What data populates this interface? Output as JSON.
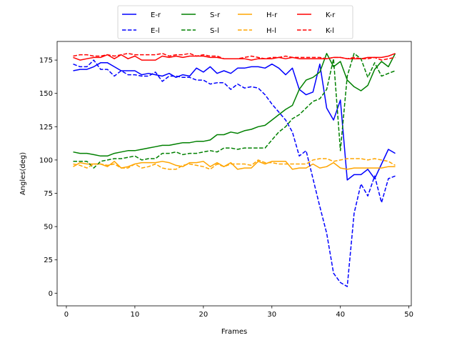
{
  "chart_data": {
    "type": "line",
    "title": "",
    "xlabel": "Frames",
    "ylabel": "Angles(deg)",
    "xlim": [
      -1.35,
      50.35
    ],
    "ylim": [
      -9.5,
      189
    ],
    "xticks": [
      0,
      10,
      20,
      30,
      40,
      50
    ],
    "yticks": [
      0,
      25,
      50,
      75,
      100,
      125,
      150,
      175
    ],
    "grid": false,
    "legend_position": "top-center",
    "x": [
      1,
      2,
      3,
      4,
      5,
      6,
      7,
      8,
      9,
      10,
      11,
      12,
      13,
      14,
      15,
      16,
      17,
      18,
      19,
      20,
      21,
      22,
      23,
      24,
      25,
      26,
      27,
      28,
      29,
      30,
      31,
      32,
      33,
      34,
      35,
      36,
      37,
      38,
      39,
      40,
      41,
      42,
      43,
      44,
      45,
      46,
      47,
      48
    ],
    "series": [
      {
        "name": "E-r",
        "color": "#0000ff",
        "dash": "solid",
        "values": [
          167,
          168,
          168,
          170,
          173,
          173,
          170,
          167,
          167,
          167,
          164,
          165,
          164,
          163,
          165,
          162,
          164,
          163,
          169,
          166,
          170,
          165,
          167,
          165,
          169,
          169,
          170,
          170,
          169,
          172,
          169,
          164,
          169,
          153,
          149,
          151,
          172,
          139,
          130,
          145,
          85,
          89,
          89,
          93,
          86,
          97,
          108,
          105
        ]
      },
      {
        "name": "S-r",
        "color": "#008000",
        "dash": "solid",
        "values": [
          106,
          105,
          105,
          104,
          103,
          103,
          105,
          106,
          107,
          107,
          108,
          109,
          110,
          111,
          111,
          112,
          113,
          113,
          114,
          114,
          115,
          119,
          119,
          121,
          120,
          122,
          123,
          125,
          126,
          130,
          134,
          138,
          141,
          153,
          160,
          162,
          166,
          180,
          170,
          174,
          160,
          155,
          152,
          156,
          168,
          174,
          170,
          180
        ]
      },
      {
        "name": "H-r",
        "color": "#ffa500",
        "dash": "solid",
        "values": [
          95,
          98,
          97,
          97,
          97,
          95,
          99,
          94,
          95,
          97,
          98,
          98,
          98,
          99,
          98,
          96,
          95,
          98,
          98,
          99,
          95,
          98,
          95,
          98,
          93,
          94,
          94,
          99,
          97,
          99,
          99,
          99,
          93,
          94,
          94,
          97,
          94,
          95,
          98,
          94,
          93,
          94,
          94,
          94,
          94,
          94,
          95,
          95
        ]
      },
      {
        "name": "K-r",
        "color": "#ff0000",
        "dash": "solid",
        "values": [
          177,
          175,
          176,
          177,
          177,
          179,
          176,
          179,
          176,
          178,
          175,
          175,
          175,
          178,
          177,
          178,
          177,
          178,
          178,
          178,
          177,
          177,
          176,
          176,
          176,
          176,
          175,
          176,
          176,
          176,
          177,
          176,
          177,
          176,
          176,
          176,
          176,
          176,
          177,
          177,
          176,
          176,
          176,
          177,
          177,
          177,
          178,
          180
        ]
      },
      {
        "name": "E-l",
        "color": "#0000ff",
        "dash": "dashed",
        "values": [
          172,
          170,
          170,
          175,
          168,
          168,
          163,
          167,
          164,
          164,
          163,
          163,
          166,
          159,
          163,
          163,
          162,
          162,
          160,
          160,
          157,
          158,
          158,
          153,
          157,
          154,
          155,
          154,
          149,
          142,
          136,
          130,
          121,
          103,
          107,
          86,
          65,
          45,
          15,
          8,
          5,
          60,
          82,
          73,
          88,
          68,
          86,
          88
        ]
      },
      {
        "name": "S-l",
        "color": "#008000",
        "dash": "dashed",
        "values": [
          99,
          99,
          99,
          94,
          99,
          100,
          101,
          101,
          102,
          103,
          100,
          101,
          101,
          105,
          105,
          106,
          104,
          105,
          105,
          106,
          107,
          106,
          109,
          109,
          108,
          109,
          109,
          109,
          109,
          115,
          121,
          125,
          131,
          134,
          139,
          144,
          146,
          153,
          176,
          107,
          163,
          180,
          176,
          162,
          173,
          163,
          165,
          167
        ]
      },
      {
        "name": "H-l",
        "color": "#ffa500",
        "dash": "dashed",
        "values": [
          97,
          96,
          94,
          97,
          97,
          96,
          97,
          94,
          94,
          97,
          94,
          95,
          97,
          94,
          93,
          93,
          96,
          97,
          96,
          95,
          93,
          97,
          95,
          97,
          97,
          97,
          96,
          100,
          98,
          98,
          97,
          97,
          97,
          97,
          97,
          100,
          101,
          101,
          99,
          100,
          101,
          101,
          101,
          100,
          101,
          100,
          99,
          96
        ]
      },
      {
        "name": "K-l",
        "color": "#ff0000",
        "dash": "dashed",
        "values": [
          178,
          179,
          179,
          178,
          178,
          179,
          178,
          179,
          180,
          179,
          179,
          179,
          179,
          180,
          178,
          179,
          179,
          180,
          178,
          179,
          178,
          178,
          176,
          176,
          176,
          177,
          178,
          177,
          176,
          177,
          177,
          178,
          177,
          177,
          177,
          177,
          177,
          176,
          177,
          177,
          176,
          177,
          176,
          176,
          177,
          175,
          176,
          177
        ]
      }
    ]
  }
}
